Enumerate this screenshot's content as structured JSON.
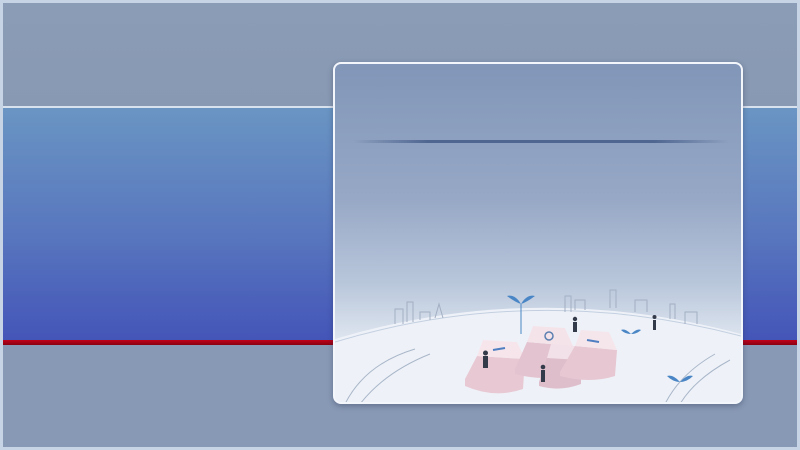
{
  "slide": {
    "colors": {
      "background": "#8a9db7",
      "blue_band_top": "#6a95c3",
      "blue_band_bottom": "#4455b8",
      "accent_line": "#c0001b",
      "card_border": "#f3f6fb"
    },
    "card": {
      "illustration": "keyboard-keys-with-people-illustration"
    }
  }
}
